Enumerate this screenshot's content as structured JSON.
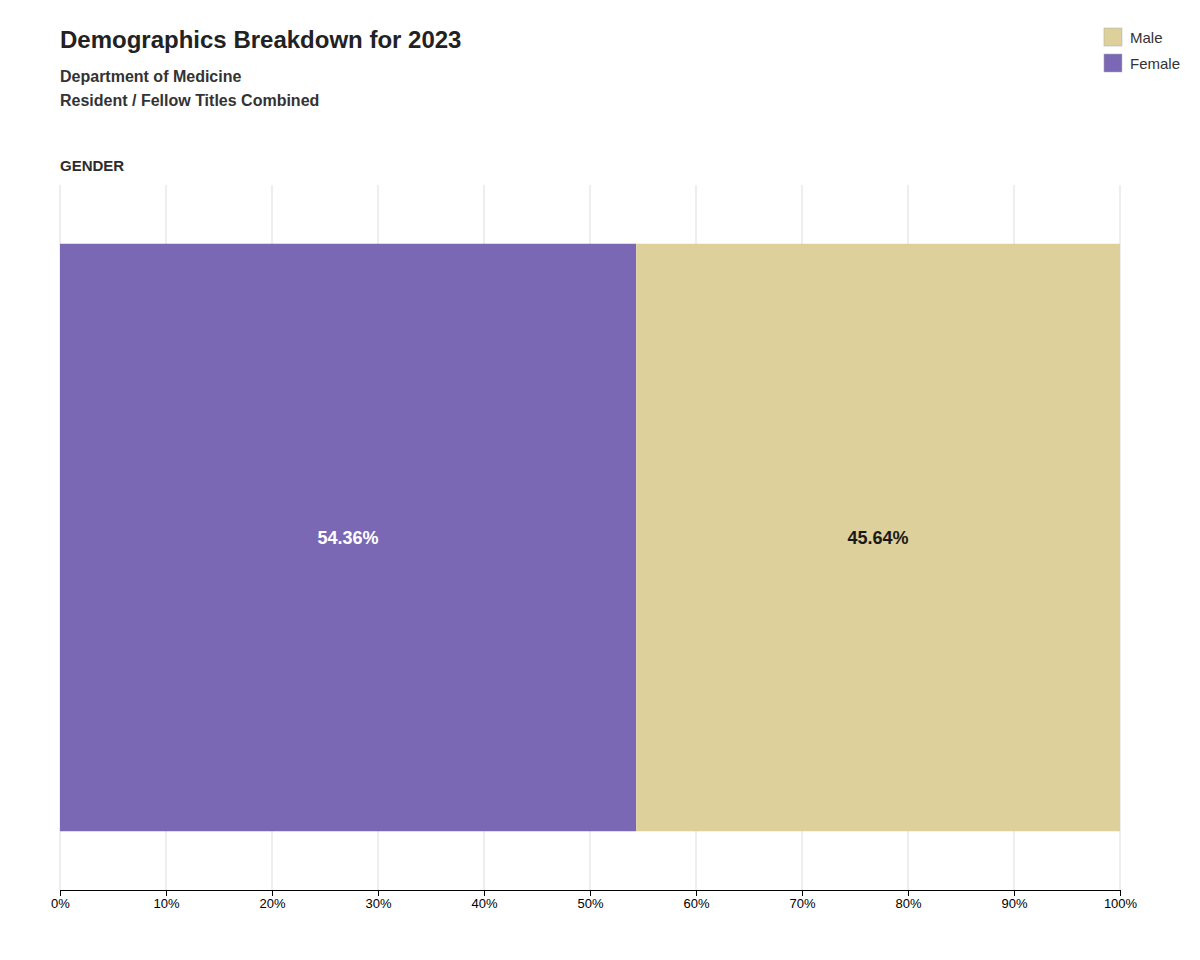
{
  "chart_data": {
    "type": "bar",
    "orientation": "horizontal",
    "stacked": true,
    "title": "Demographics Breakdown for 2023",
    "subtitle": [
      "Department of Medicine",
      "Resident / Fellow Titles Combined"
    ],
    "annotations": [
      "GENDER"
    ],
    "categories": [
      null
    ],
    "series": [
      {
        "name": "Female",
        "color": "#7B68B5",
        "values": [
          54.36
        ],
        "value_labels": [
          "54.36%"
        ]
      },
      {
        "name": "Male",
        "color": "#DDD09A",
        "values": [
          45.64
        ],
        "value_labels": [
          "45.64%"
        ]
      }
    ],
    "xlim": [
      0,
      100
    ],
    "xticks": [
      {
        "value": 0,
        "label": "0%"
      },
      {
        "value": 10,
        "label": "10%"
      },
      {
        "value": 20,
        "label": "20%"
      },
      {
        "value": 30,
        "label": "30%"
      },
      {
        "value": 40,
        "label": "40%"
      },
      {
        "value": 50,
        "label": "50%"
      },
      {
        "value": 60,
        "label": "60%"
      },
      {
        "value": 70,
        "label": "70%"
      },
      {
        "value": 80,
        "label": "80%"
      },
      {
        "value": 90,
        "label": "90%"
      },
      {
        "value": 100,
        "label": "100%"
      }
    ],
    "grid": true,
    "data_labels": true,
    "tick_labels": "x",
    "legend": "top-right"
  }
}
